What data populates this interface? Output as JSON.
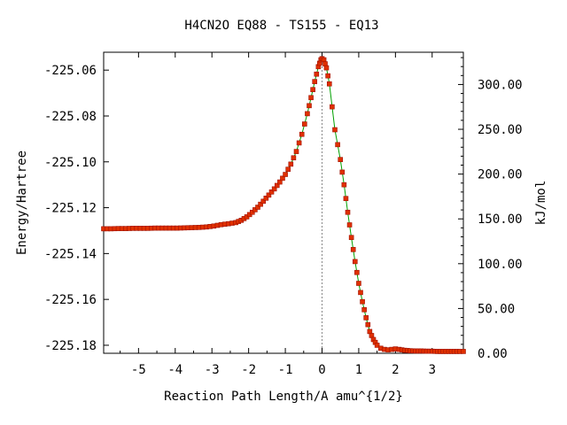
{
  "chart_data": {
    "type": "line",
    "title": "H4CN2O   EQ88 - TS155 - EQ13",
    "xlabel": "Reaction Path Length/A amu^{1/2}",
    "ylabel": "Energy/Hartree",
    "y2label": "kJ/mol",
    "xlim": [
      -5.95,
      3.85
    ],
    "ylim": [
      -225.1835,
      -225.0522
    ],
    "y2lim": [
      0,
      336
    ],
    "grid": false,
    "legend": "none",
    "x_ticks": [
      -5,
      -4,
      -3,
      -2,
      -1,
      0,
      1,
      2,
      3
    ],
    "x_tick_labels": [
      "-5",
      "-4",
      "-3",
      "-2",
      "-1",
      "0",
      "1",
      "2",
      "3"
    ],
    "y_ticks": [
      -225.06,
      -225.08,
      -225.1,
      -225.12,
      -225.14,
      -225.16,
      -225.18
    ],
    "y_tick_labels": [
      "-225.06",
      "-225.08",
      "-225.10",
      "-225.12",
      "-225.14",
      "-225.16",
      "-225.18"
    ],
    "y2_ticks": [
      0,
      50,
      100,
      150,
      200,
      250,
      300
    ],
    "y2_tick_labels": [
      "0.00",
      "50.00",
      "100.00",
      "150.00",
      "200.00",
      "250.00",
      "300.00"
    ],
    "ts_x": 0.0,
    "colors": {
      "line": "#00a000",
      "marker": "#e03000",
      "marker_edge": "#a01000",
      "ts_line": "#888888"
    },
    "series": [
      {
        "values": [
          [
            -5.95,
            -225.1292
          ],
          [
            -5.75,
            -225.1292
          ],
          [
            -5.55,
            -225.1291
          ],
          [
            -5.35,
            -225.1291
          ],
          [
            -5.15,
            -225.129
          ],
          [
            -4.95,
            -225.129
          ],
          [
            -4.75,
            -225.129
          ],
          [
            -4.55,
            -225.1289
          ],
          [
            -4.35,
            -225.1289
          ],
          [
            -4.15,
            -225.1289
          ],
          [
            -3.95,
            -225.1289
          ],
          [
            -3.75,
            -225.1288
          ],
          [
            -3.55,
            -225.1287
          ],
          [
            -3.35,
            -225.1286
          ],
          [
            -3.15,
            -225.1284
          ],
          [
            -2.95,
            -225.128
          ],
          [
            -2.75,
            -225.1274
          ],
          [
            -2.55,
            -225.127
          ],
          [
            -2.35,
            -225.1265
          ],
          [
            -2.2,
            -225.1255
          ],
          [
            -2.05,
            -225.124
          ],
          [
            -1.9,
            -225.122
          ],
          [
            -1.75,
            -225.1198
          ],
          [
            -1.6,
            -225.1172
          ],
          [
            -1.45,
            -225.1145
          ],
          [
            -1.3,
            -225.1118
          ],
          [
            -1.15,
            -225.1088
          ],
          [
            -1.0,
            -225.1055
          ],
          [
            -0.85,
            -225.101
          ],
          [
            -0.7,
            -225.0955
          ],
          [
            -0.55,
            -225.088
          ],
          [
            -0.4,
            -225.079
          ],
          [
            -0.3,
            -225.072
          ],
          [
            -0.2,
            -225.065
          ],
          [
            -0.1,
            -225.0585
          ],
          [
            -0.03,
            -225.0555
          ],
          [
            0.0,
            -225.055
          ],
          [
            0.05,
            -225.0555
          ],
          [
            0.12,
            -225.059
          ],
          [
            0.2,
            -225.066
          ],
          [
            0.35,
            -225.086
          ],
          [
            0.5,
            -225.099
          ],
          [
            0.6,
            -225.11
          ],
          [
            0.7,
            -225.122
          ],
          [
            0.8,
            -225.133
          ],
          [
            0.9,
            -225.1435
          ],
          [
            1.0,
            -225.153
          ],
          [
            1.1,
            -225.161
          ],
          [
            1.2,
            -225.168
          ],
          [
            1.3,
            -225.174
          ],
          [
            1.4,
            -225.1775
          ],
          [
            1.5,
            -225.18
          ],
          [
            1.6,
            -225.1813
          ],
          [
            1.7,
            -225.1818
          ],
          [
            1.8,
            -225.182
          ],
          [
            1.9,
            -225.1818
          ],
          [
            2.0,
            -225.1816
          ],
          [
            2.1,
            -225.1818
          ],
          [
            2.25,
            -225.1822
          ],
          [
            2.4,
            -225.1824
          ],
          [
            2.55,
            -225.1825
          ],
          [
            2.7,
            -225.1825
          ],
          [
            2.85,
            -225.1826
          ],
          [
            3.0,
            -225.1826
          ],
          [
            3.15,
            -225.1827
          ],
          [
            3.3,
            -225.1827
          ],
          [
            3.45,
            -225.1827
          ],
          [
            3.6,
            -225.1827
          ],
          [
            3.75,
            -225.1827
          ],
          [
            3.85,
            -225.1827
          ]
        ]
      }
    ]
  }
}
